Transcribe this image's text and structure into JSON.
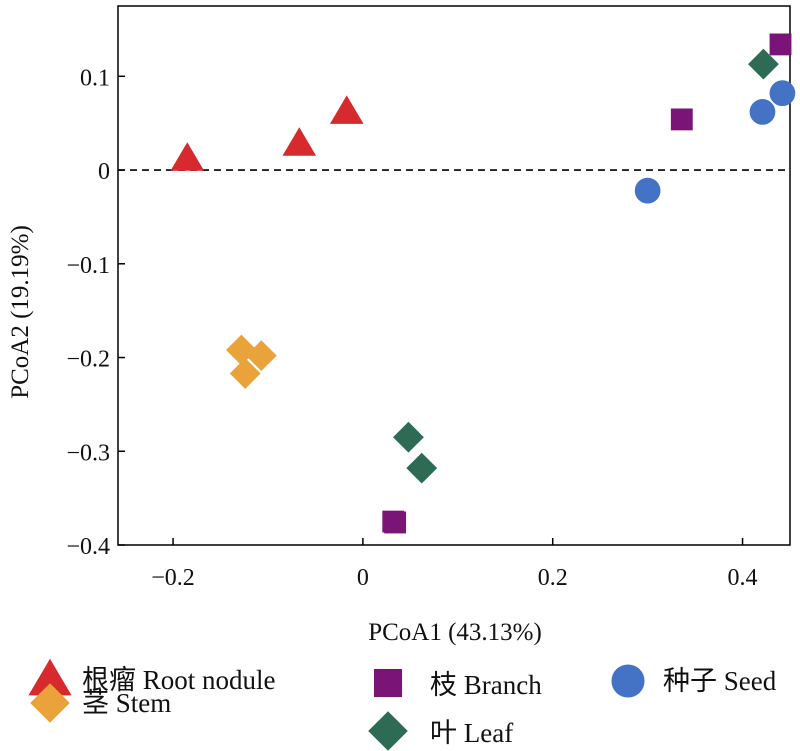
{
  "chart_data": {
    "type": "scatter",
    "title": "",
    "xlabel": "PCoA1 (43.13%)",
    "ylabel": "PCoA2 (19.19%)",
    "xlim": [
      -0.258,
      0.45
    ],
    "ylim": [
      -0.4,
      0.175
    ],
    "xticks": [
      -0.2,
      0,
      0.2,
      0.4
    ],
    "yticks": [
      0.1,
      0,
      -0.1,
      -0.2,
      -0.3,
      -0.4
    ],
    "xtick_labels": [
      "−0.2",
      "0",
      "0.2",
      "0.4"
    ],
    "ytick_labels": [
      "0.1",
      "0",
      "−0.1",
      "−0.2",
      "−0.3",
      "−0.4"
    ],
    "reference_line": {
      "y": 0,
      "style": "dashed"
    },
    "grid": false,
    "legend_position": "bottom",
    "series": [
      {
        "name": "根瘤 Root nodule",
        "marker": "triangle",
        "color": "#d62a2f",
        "points": [
          [
            -0.185,
            0.012
          ],
          [
            -0.067,
            0.028
          ],
          [
            -0.017,
            0.062
          ]
        ]
      },
      {
        "name": "枝 Branch",
        "marker": "square",
        "color": "#7a1476",
        "points": [
          [
            0.44,
            0.134
          ],
          [
            0.336,
            0.054
          ],
          [
            0.032,
            -0.375
          ],
          [
            0.034,
            -0.376
          ]
        ]
      },
      {
        "name": "种子 Seed",
        "marker": "circle",
        "color": "#4472c4",
        "points": [
          [
            0.442,
            0.082
          ],
          [
            0.421,
            0.062
          ],
          [
            0.3,
            -0.022
          ]
        ]
      },
      {
        "name": "茎 Stem",
        "marker": "diamond",
        "color": "#eaa33b",
        "points": [
          [
            -0.128,
            -0.192
          ],
          [
            -0.107,
            -0.198
          ],
          [
            -0.124,
            -0.217
          ]
        ]
      },
      {
        "name": "叶 Leaf",
        "marker": "diamond",
        "color": "#2e6b55",
        "points": [
          [
            0.422,
            0.113
          ],
          [
            0.048,
            -0.285
          ],
          [
            0.062,
            -0.318
          ]
        ]
      }
    ]
  }
}
